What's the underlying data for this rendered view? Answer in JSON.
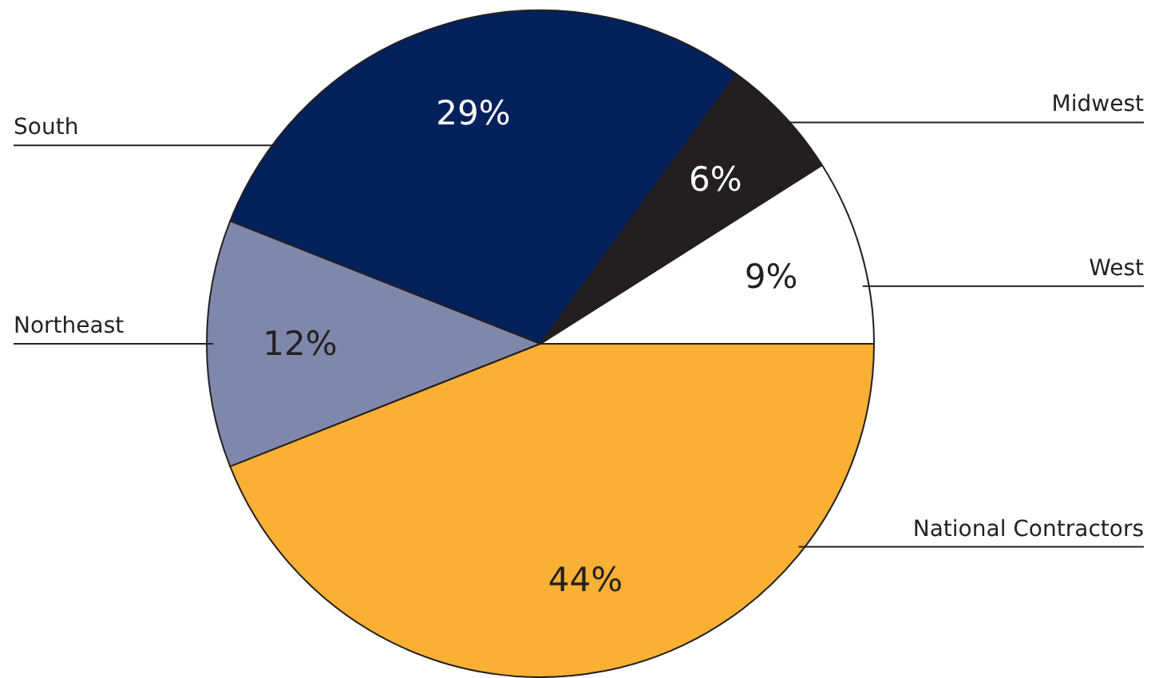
{
  "chart_data": {
    "type": "pie",
    "categories": [
      "West",
      "Midwest",
      "South",
      "Northeast",
      "National Contractors"
    ],
    "values": [
      9,
      6,
      29,
      12,
      44
    ],
    "colors": [
      "#ffffff",
      "#231f20",
      "#04215c",
      "#7f87ab",
      "#f9b034"
    ],
    "value_labels": [
      "9%",
      "6%",
      "29%",
      "12%",
      "44%"
    ]
  }
}
